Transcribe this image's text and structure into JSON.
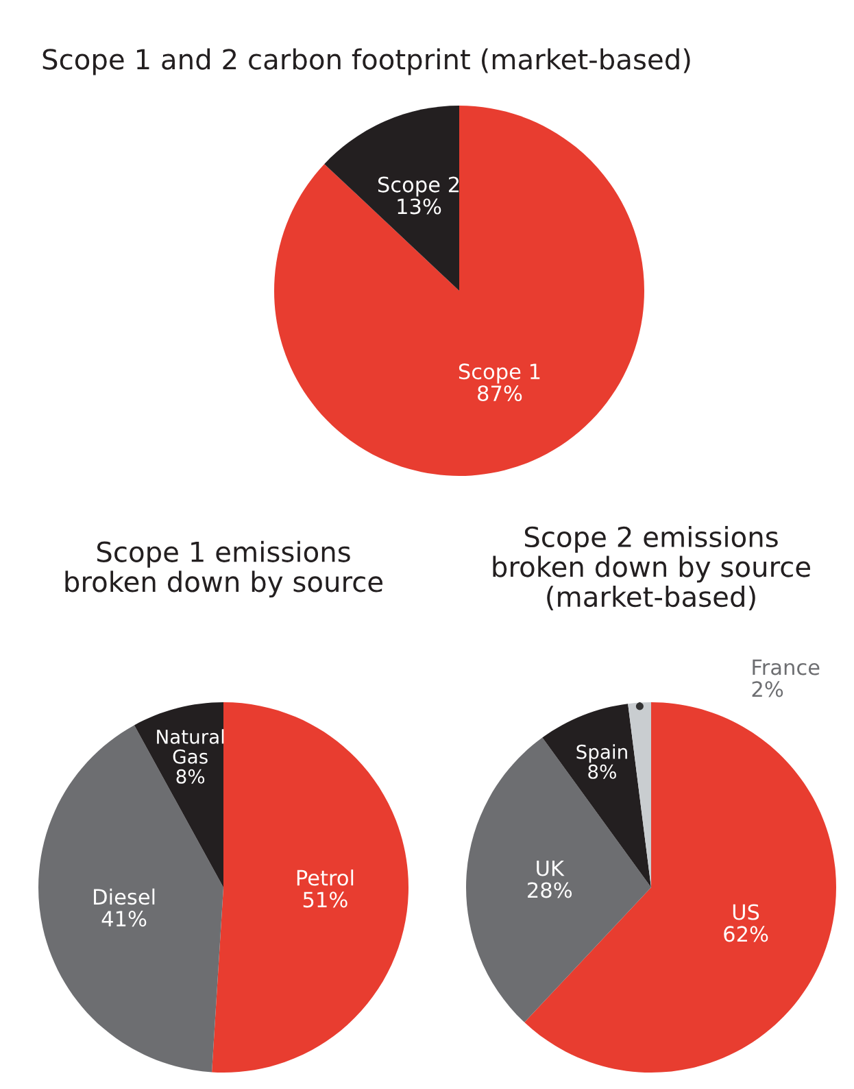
{
  "chart_data": [
    {
      "type": "pie",
      "title": "Scope 1 and 2 carbon footprint (market-based)",
      "categories": [
        "Scope 1",
        "Scope 2"
      ],
      "values": [
        87,
        13
      ],
      "value_labels": [
        "87%",
        "13%"
      ],
      "colors": [
        "#e83d30",
        "#231f20"
      ]
    },
    {
      "type": "pie",
      "title": "Scope 1 emissions\nbroken down by source",
      "categories": [
        "Petrol",
        "Diesel",
        "Natural\nGas"
      ],
      "values": [
        51,
        41,
        8
      ],
      "value_labels": [
        "51%",
        "41%",
        "8%"
      ],
      "colors": [
        "#e83d30",
        "#6d6e71",
        "#231f20"
      ]
    },
    {
      "type": "pie",
      "title": "Scope 2 emissions\nbroken down by source\n(market-based)",
      "categories": [
        "US",
        "UK",
        "Spain",
        "France"
      ],
      "values": [
        62,
        28,
        8,
        2
      ],
      "value_labels": [
        "62%",
        "28%",
        "8%",
        "2%"
      ],
      "colors": [
        "#e83d30",
        "#6d6e71",
        "#231f20",
        "#c9cdd0"
      ]
    }
  ]
}
